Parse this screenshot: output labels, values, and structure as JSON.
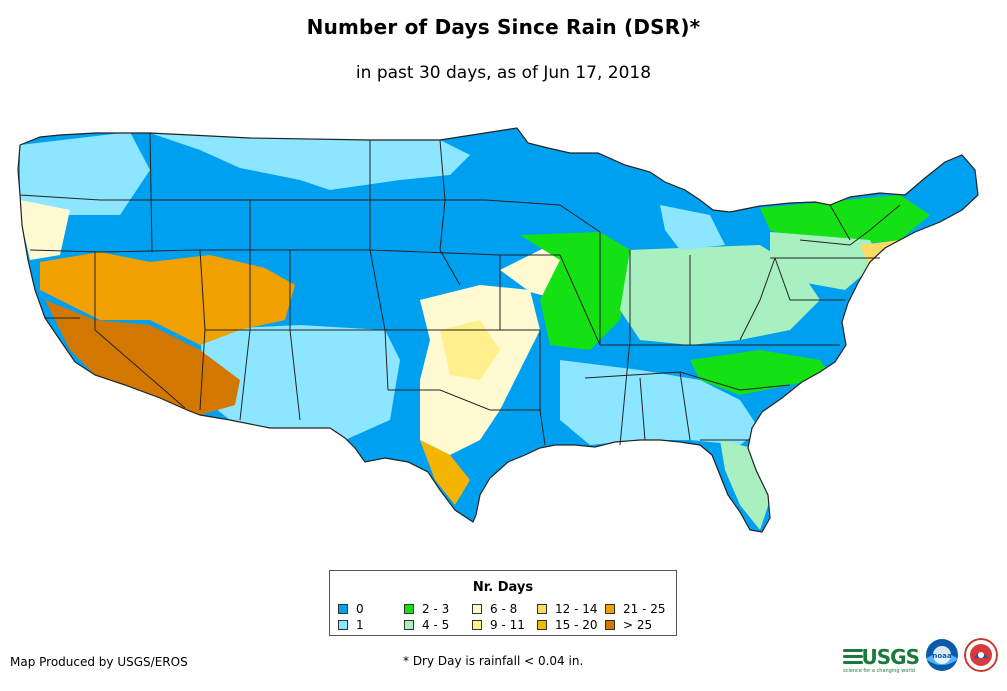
{
  "title": "Number of Days Since Rain (DSR)*",
  "subtitle": "in past 30 days, as of Jun 17, 2018",
  "legend": {
    "title": "Nr. Days",
    "items": [
      {
        "label": "0",
        "color": "#00a0f0"
      },
      {
        "label": "1",
        "color": "#8ce6ff"
      },
      {
        "label": "2 - 3",
        "color": "#14e114"
      },
      {
        "label": "4 - 5",
        "color": "#a8f0c0"
      },
      {
        "label": "6 - 8",
        "color": "#fffad2"
      },
      {
        "label": "9 - 11",
        "color": "#fff08c"
      },
      {
        "label": "12 - 14",
        "color": "#fadc64"
      },
      {
        "label": "15 - 20",
        "color": "#f5b400"
      },
      {
        "label": "21 - 25",
        "color": "#f0a000"
      },
      {
        "label": "> 25",
        "color": "#d27800"
      }
    ]
  },
  "credit": "Map Produced by USGS/EROS",
  "footnote": "* Dry Day is rainfall < 0.04 in.",
  "logos": {
    "usgs_text": "USGS",
    "usgs_tagline": "science for a changing world",
    "noaa_text": "noaa",
    "nws_icon": "national-weather-service-logo-icon"
  },
  "colors": {
    "state_border": "#222222",
    "background": "#ffffff"
  }
}
